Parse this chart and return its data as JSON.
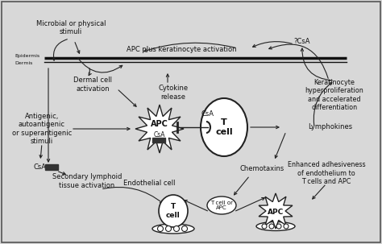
{
  "bg_color": "#d8d8d8",
  "border_color": "#222222",
  "line_color": "#222222",
  "text_color": "#111111",
  "figsize": [
    4.74,
    3.03
  ],
  "dpi": 100,
  "labels": {
    "microbial": "Microbial or physical\nstimuli",
    "apc_keratino": "APC plus keratinocyte activation",
    "csa_q": "?CsA",
    "epidermis": "Epidermis",
    "dermis": "Dermis",
    "dermal_cell": "Dermal cell\nactivation",
    "cytokine": "Cytokine\nrelease",
    "keratinocyte": "Keratinocyte\nhyperproliferation\nand accelerated\ndifferentiation",
    "antigenic": "Antigenic,\nautoantigenic\nor superantigenic\nstimuli",
    "apc_label": "APC",
    "csa_apc": "CsA",
    "t_cell_label": "T\ncell",
    "csa_tcell": "CsA",
    "lymphokines": "Lymphokines",
    "csa_left": "CsA",
    "secondary": "Secondary lymphoid\ntissue activation",
    "endothelial": "Endothelial cell",
    "t_cell_or_apc": "T cell or\nAPC",
    "chemotaxins": "Chemotaxins",
    "enhanced": "Enhanced adhesiveness\nof endothelium to\nT cells and APC",
    "t_cell_bottom": "T\ncell",
    "apc_bottom": "APC"
  }
}
